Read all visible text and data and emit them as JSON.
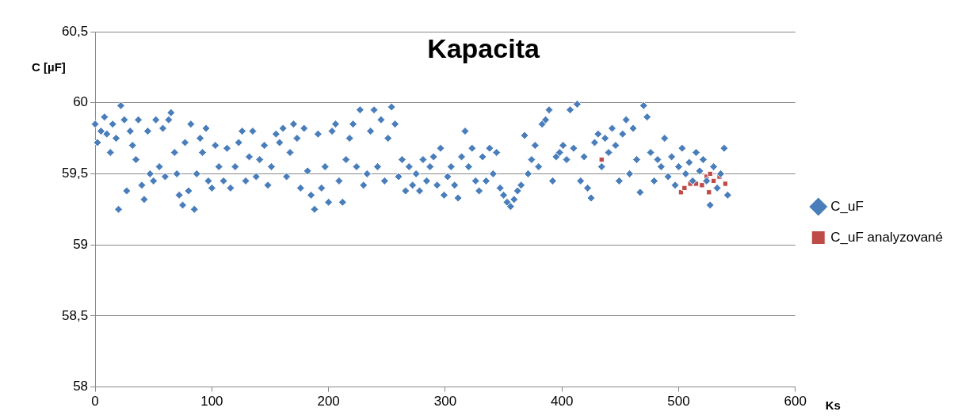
{
  "chart_data": {
    "type": "scatter",
    "title": "Kapacita",
    "xlabel": "Ks",
    "ylabel": "C [µF]",
    "xlim": [
      0,
      600
    ],
    "xticks": [
      0,
      100,
      200,
      300,
      400,
      500,
      600
    ],
    "ylim": [
      58,
      60.5
    ],
    "yticks": [
      {
        "value": 58,
        "label": "58"
      },
      {
        "value": 58.5,
        "label": "58,5"
      },
      {
        "value": 59,
        "label": "59"
      },
      {
        "value": 59.5,
        "label": "59,5"
      },
      {
        "value": 60,
        "label": "60"
      },
      {
        "value": 60.5,
        "label": "60,5"
      }
    ],
    "grid": "y",
    "legend": "right",
    "series": [
      {
        "name": "C_uF",
        "color": "#4a7ebb",
        "marker": "diamond",
        "x": [
          0,
          2,
          5,
          8,
          10,
          13,
          15,
          18,
          20,
          22,
          25,
          27,
          30,
          32,
          35,
          37,
          40,
          42,
          45,
          47,
          50,
          52,
          55,
          58,
          60,
          63,
          65,
          68,
          70,
          72,
          75,
          77,
          80,
          82,
          85,
          87,
          90,
          92,
          95,
          97,
          100,
          103,
          106,
          110,
          113,
          116,
          120,
          123,
          126,
          129,
          132,
          135,
          138,
          141,
          145,
          148,
          151,
          155,
          158,
          161,
          164,
          167,
          170,
          173,
          176,
          179,
          182,
          185,
          188,
          191,
          194,
          197,
          200,
          203,
          206,
          209,
          212,
          215,
          218,
          221,
          224,
          227,
          230,
          233,
          236,
          239,
          242,
          245,
          248,
          251,
          254,
          257,
          260,
          263,
          266,
          269,
          272,
          275,
          278,
          281,
          284,
          287,
          290,
          293,
          296,
          299,
          302,
          305,
          308,
          311,
          314,
          317,
          320,
          323,
          326,
          329,
          332,
          335,
          338,
          341,
          344,
          347,
          350,
          353,
          356,
          359,
          362,
          365,
          368,
          371,
          374,
          377,
          380,
          383,
          386,
          389,
          392,
          395,
          398,
          401,
          404,
          407,
          410,
          413,
          416,
          419,
          422,
          425,
          428,
          431,
          434,
          437,
          440,
          443,
          446,
          449,
          452,
          455,
          458,
          461,
          464,
          467,
          470,
          473,
          476,
          479,
          482,
          485,
          488,
          491,
          494,
          497,
          500,
          503,
          506,
          509,
          512,
          515,
          518,
          521,
          524,
          527,
          530,
          533,
          536,
          539,
          542
        ],
        "values": [
          59.85,
          59.72,
          59.8,
          59.9,
          59.78,
          59.65,
          59.85,
          59.75,
          59.25,
          59.98,
          59.88,
          59.38,
          59.8,
          59.7,
          59.6,
          59.88,
          59.42,
          59.32,
          59.8,
          59.5,
          59.45,
          59.88,
          59.55,
          59.82,
          59.48,
          59.88,
          59.93,
          59.65,
          59.5,
          59.35,
          59.28,
          59.72,
          59.38,
          59.85,
          59.25,
          59.5,
          59.75,
          59.65,
          59.82,
          59.45,
          59.4,
          59.7,
          59.55,
          59.45,
          59.68,
          59.4,
          59.55,
          59.72,
          59.8,
          59.45,
          59.62,
          59.8,
          59.48,
          59.6,
          59.7,
          59.42,
          59.55,
          59.78,
          59.72,
          59.82,
          59.48,
          59.65,
          59.85,
          59.75,
          59.4,
          59.82,
          59.52,
          59.35,
          59.25,
          59.78,
          59.4,
          59.55,
          59.3,
          59.8,
          59.85,
          59.45,
          59.3,
          59.6,
          59.75,
          59.85,
          59.55,
          59.95,
          59.42,
          59.5,
          59.8,
          59.95,
          59.55,
          59.88,
          59.45,
          59.75,
          59.97,
          59.85,
          59.48,
          59.6,
          59.38,
          59.55,
          59.42,
          59.5,
          59.38,
          59.6,
          59.45,
          59.55,
          59.62,
          59.42,
          59.68,
          59.35,
          59.48,
          59.55,
          59.42,
          59.33,
          59.62,
          59.8,
          59.55,
          59.68,
          59.45,
          59.38,
          59.62,
          59.45,
          59.68,
          59.5,
          59.65,
          59.4,
          59.35,
          59.3,
          59.27,
          59.32,
          59.38,
          59.42,
          59.77,
          59.5,
          59.6,
          59.7,
          59.55,
          59.85,
          59.88,
          59.95,
          59.45,
          59.62,
          59.65,
          59.7,
          59.6,
          59.95,
          59.68,
          59.99,
          59.45,
          59.62,
          59.4,
          59.33,
          59.72,
          59.78,
          59.55,
          59.75,
          59.65,
          59.82,
          59.7,
          59.45,
          59.78,
          59.88,
          59.5,
          59.82,
          59.6,
          59.37,
          59.98,
          59.9,
          59.65,
          59.45,
          59.6,
          59.55,
          59.75,
          59.48,
          59.62,
          59.42,
          59.55,
          59.68,
          59.5,
          59.58,
          59.45,
          59.65,
          59.52,
          59.6,
          59.45,
          59.28,
          59.55,
          59.4,
          59.5,
          59.68,
          59.35
        ]
      },
      {
        "name": "C_uF analyzované",
        "color": "#be4b48",
        "marker": "square",
        "x": [
          434,
          502,
          505,
          510,
          515,
          520,
          524,
          527,
          530,
          526,
          540,
          535
        ],
        "values": [
          59.6,
          59.37,
          59.4,
          59.43,
          59.43,
          59.42,
          59.48,
          59.5,
          59.45,
          59.37,
          59.43,
          59.48
        ]
      }
    ]
  }
}
